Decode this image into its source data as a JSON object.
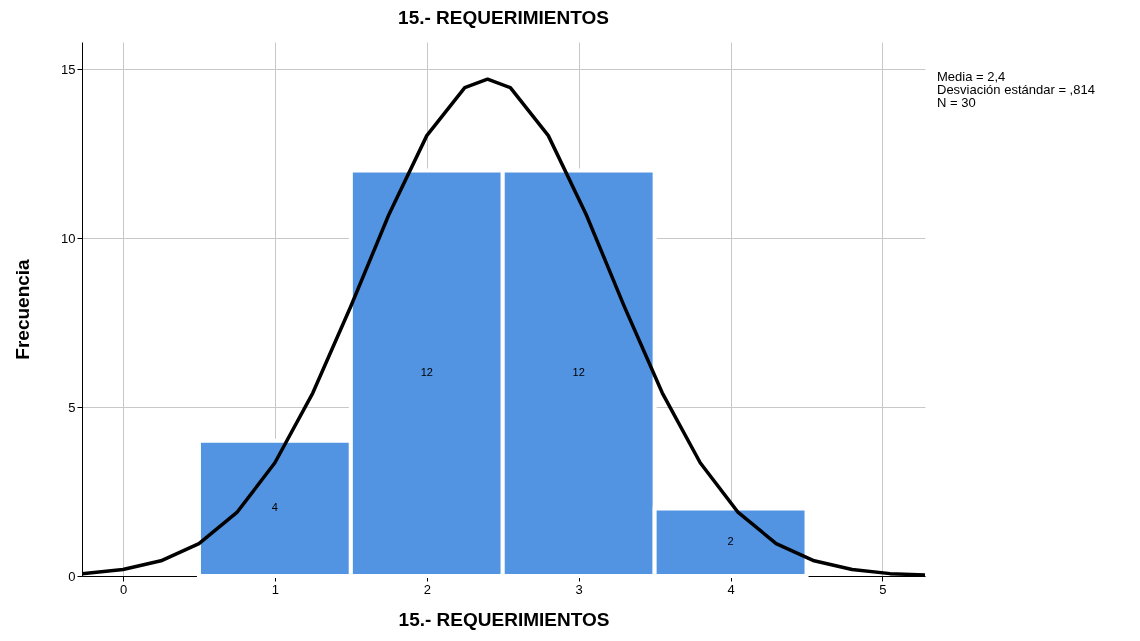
{
  "chart_data": {
    "type": "histogram",
    "title": "15.- REQUERIMIENTOS",
    "xlabel": "15.- REQUERIMIENTOS",
    "ylabel": "Frecuencia",
    "bins": [
      0.5,
      1.5,
      2.5,
      3.5,
      4.5
    ],
    "series": [
      {
        "color": "#5294e2",
        "values": [
          4,
          12,
          12,
          2
        ],
        "value_labels": [
          "4",
          "12",
          "12",
          "2"
        ]
      },
      {
        "type": "line",
        "color": "#000000",
        "x": [
          -0.27,
          0,
          0.25,
          0.5,
          0.75,
          1,
          1.25,
          1.5,
          1.75,
          2,
          2.25,
          2.4,
          2.55,
          2.8,
          3.05,
          3.3,
          3.55,
          3.8,
          4.05,
          4.3,
          4.55,
          4.8,
          5.05,
          5.28
        ],
        "values": [
          0.07,
          0.19,
          0.45,
          0.96,
          1.88,
          3.35,
          5.42,
          7.98,
          10.69,
          13.03,
          14.45,
          14.7,
          14.45,
          13.03,
          10.69,
          7.98,
          5.42,
          3.35,
          1.88,
          0.96,
          0.45,
          0.19,
          0.07,
          0.03
        ]
      }
    ],
    "xlim": [
      -0.27,
      5.28
    ],
    "xticks": [
      0,
      1,
      2,
      3,
      4,
      5
    ],
    "ylim": [
      0,
      15.8
    ],
    "yticks": [
      0,
      5,
      10,
      15
    ],
    "grid": true,
    "annotations": [
      "Media = 2,4",
      "Desviación estándar = ,814",
      "N = 30"
    ]
  }
}
